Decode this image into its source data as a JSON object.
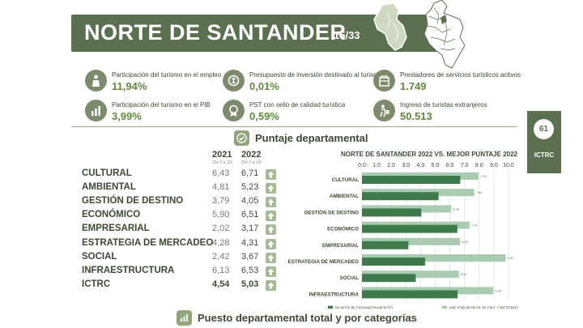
{
  "header": {
    "title": "NORTE DE SANTANDER",
    "counter": "15/33"
  },
  "colors": {
    "primary_green": "#5b7050",
    "accent_green": "#5e8a3c",
    "series_departamento": "#3f7a4d",
    "series_mejor": "#a9ccb1"
  },
  "indicators": [
    {
      "label": "Participación del turismo en el empleo",
      "value": "11,94%",
      "icon": "employment-icon"
    },
    {
      "label": "Presupuesto de inversión destinado al turismo",
      "value": "0,01%",
      "icon": "budget-icon"
    },
    {
      "label": "Prestadores de servicios turísticos activos",
      "value": "1.749",
      "icon": "providers-icon"
    },
    {
      "label": "Participación del turismo en el PIB",
      "value": "3,99%",
      "icon": "pib-icon"
    },
    {
      "label": "PST con sello de calidad turística",
      "value": "0,59%",
      "icon": "quality-seal-icon"
    },
    {
      "label": "Ingreso de turistas extranjeros",
      "value": "50.513",
      "icon": "tourists-icon"
    }
  ],
  "score_section": {
    "title": "Puntaje departamental",
    "col_2021": "2021",
    "col_2022": "2022",
    "col_sub": "(De 0 a 10)",
    "rows": [
      {
        "category": "CULTURAL",
        "v2021": "6,43",
        "v2022": "6,71"
      },
      {
        "category": "AMBIENTAL",
        "v2021": "4,81",
        "v2022": "5,23"
      },
      {
        "category": "GESTIÓN DE DESTINO",
        "v2021": "3,79",
        "v2022": "4,05"
      },
      {
        "category": "ECONÓMICO",
        "v2021": "5,90",
        "v2022": "6,51"
      },
      {
        "category": "EMPRESARIAL",
        "v2021": "2,02",
        "v2022": "3,17"
      },
      {
        "category": "ESTRATEGIA DE MERCADEO",
        "v2021": "4,28",
        "v2022": "4,31"
      },
      {
        "category": "SOCIAL",
        "v2021": "2,42",
        "v2022": "3,67"
      },
      {
        "category": "INFRAESTRUCTURA",
        "v2021": "6,13",
        "v2022": "6,53"
      },
      {
        "category": "ICTRC",
        "v2021": "4,54",
        "v2022": "5,03"
      }
    ]
  },
  "badge": {
    "number": "61",
    "label": "ICTRC"
  },
  "bottom_section": {
    "title": "Puesto departamental total y por categorías"
  },
  "chart_data": {
    "type": "bar",
    "orientation": "horizontal",
    "title": "NORTE DE SANTANDER 2022 VS. MEJOR PUNTAJE 2022",
    "categories": [
      "CULTURAL",
      "AMBIENTAL",
      "GESTIÓN DE DESTINO",
      "ECONÓMICO",
      "EMPRESARIAL",
      "ESTRATEGIA DE MERCADEO",
      "SOCIAL",
      "INFRAESTRUCTURA"
    ],
    "series": [
      {
        "name": "PUNTAJE DEPARTAMENTO",
        "values": [
          6.71,
          5.23,
          4.05,
          6.51,
          3.17,
          4.31,
          3.67,
          6.53
        ],
        "color": "#3f7a4d"
      },
      {
        "name": "MEJOR PUNTAJE DEL CRITERIO",
        "values": [
          7.95,
          7.66,
          6.08,
          7.34,
          6.69,
          9.81,
          6.62,
          8.96
        ],
        "color": "#a9ccb1"
      }
    ],
    "best_labels": [
      "7,95",
      "7,66",
      "6,08",
      "7,34",
      "6,69",
      "9,81",
      "6,62",
      "8,96"
    ],
    "x_ticks": [
      "0.0",
      "1.0",
      "2.0",
      "3.0",
      "4.0",
      "5.0",
      "6.0",
      "7.0",
      "8.0",
      "9.0",
      "10.0"
    ],
    "xlim": [
      0,
      10
    ],
    "grid": true,
    "legend_position": "bottom"
  }
}
